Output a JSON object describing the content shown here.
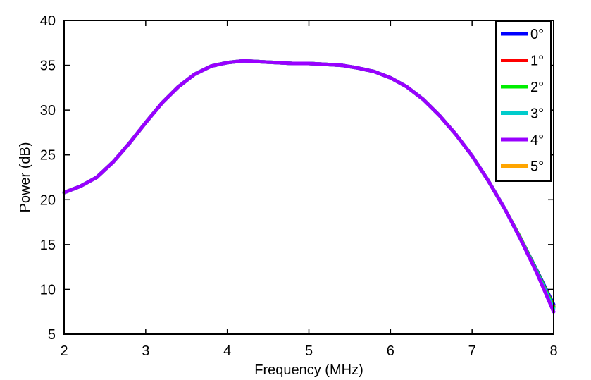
{
  "chart_data": {
    "type": "line",
    "title": "",
    "xlabel": "Frequency (MHz)",
    "ylabel": "Power (dB)",
    "xlim": [
      2,
      8
    ],
    "ylim": [
      5,
      40
    ],
    "xticks": [
      2,
      3,
      4,
      5,
      6,
      7,
      8
    ],
    "yticks": [
      5,
      10,
      15,
      20,
      25,
      30,
      35,
      40
    ],
    "grid": false,
    "legend_position": "top-right",
    "series": [
      {
        "name": "0°",
        "color": "#0000ff",
        "x": [
          2.0,
          2.2,
          2.4,
          2.6,
          2.8,
          3.0,
          3.2,
          3.4,
          3.6,
          3.8,
          4.0,
          4.2,
          4.4,
          4.6,
          4.8,
          5.0,
          5.2,
          5.4,
          5.6,
          5.8,
          6.0,
          6.2,
          6.4,
          6.6,
          6.8,
          7.0,
          7.2,
          7.4,
          7.6,
          7.8,
          8.0
        ],
        "y": [
          20.8,
          21.5,
          22.5,
          24.2,
          26.3,
          28.6,
          30.8,
          32.6,
          34.0,
          34.9,
          35.3,
          35.5,
          35.4,
          35.3,
          35.2,
          35.2,
          35.1,
          35.0,
          34.7,
          34.3,
          33.6,
          32.6,
          31.2,
          29.4,
          27.3,
          24.9,
          22.1,
          19.0,
          15.6,
          12.0,
          8.3
        ]
      },
      {
        "name": "1°",
        "color": "#ff0000",
        "x": [
          2.0,
          2.2,
          2.4,
          2.6,
          2.8,
          3.0,
          3.2,
          3.4,
          3.6,
          3.8,
          4.0,
          4.2,
          4.4,
          4.6,
          4.8,
          5.0,
          5.2,
          5.4,
          5.6,
          5.8,
          6.0,
          6.2,
          6.4,
          6.6,
          6.8,
          7.0,
          7.2,
          7.4,
          7.6,
          7.8,
          8.0
        ],
        "y": [
          20.8,
          21.5,
          22.5,
          24.2,
          26.3,
          28.6,
          30.8,
          32.6,
          34.0,
          34.9,
          35.3,
          35.5,
          35.4,
          35.3,
          35.2,
          35.2,
          35.1,
          35.0,
          34.7,
          34.3,
          33.6,
          32.6,
          31.2,
          29.4,
          27.3,
          24.9,
          22.1,
          19.0,
          15.6,
          11.9,
          8.1
        ]
      },
      {
        "name": "2°",
        "color": "#00ee00",
        "x": [
          2.0,
          2.2,
          2.4,
          2.6,
          2.8,
          3.0,
          3.2,
          3.4,
          3.6,
          3.8,
          4.0,
          4.2,
          4.4,
          4.6,
          4.8,
          5.0,
          5.2,
          5.4,
          5.6,
          5.8,
          6.0,
          6.2,
          6.4,
          6.6,
          6.8,
          7.0,
          7.2,
          7.4,
          7.6,
          7.8,
          8.0
        ],
        "y": [
          20.8,
          21.5,
          22.5,
          24.2,
          26.3,
          28.6,
          30.8,
          32.6,
          34.0,
          34.9,
          35.3,
          35.5,
          35.4,
          35.3,
          35.2,
          35.2,
          35.1,
          35.0,
          34.7,
          34.3,
          33.6,
          32.6,
          31.2,
          29.4,
          27.3,
          24.9,
          22.1,
          19.0,
          15.6,
          11.9,
          8.0
        ]
      },
      {
        "name": "3°",
        "color": "#00cccc",
        "x": [
          2.0,
          2.2,
          2.4,
          2.6,
          2.8,
          3.0,
          3.2,
          3.4,
          3.6,
          3.8,
          4.0,
          4.2,
          4.4,
          4.6,
          4.8,
          5.0,
          5.2,
          5.4,
          5.6,
          5.8,
          6.0,
          6.2,
          6.4,
          6.6,
          6.8,
          7.0,
          7.2,
          7.4,
          7.6,
          7.8,
          8.0
        ],
        "y": [
          20.8,
          21.5,
          22.5,
          24.2,
          26.3,
          28.6,
          30.8,
          32.6,
          34.0,
          34.9,
          35.3,
          35.5,
          35.4,
          35.3,
          35.2,
          35.2,
          35.1,
          35.0,
          34.7,
          34.3,
          33.6,
          32.6,
          31.2,
          29.4,
          27.3,
          24.9,
          22.1,
          19.0,
          15.5,
          11.8,
          7.8
        ]
      },
      {
        "name": "4°",
        "color": "#9900ff",
        "x": [
          2.0,
          2.2,
          2.4,
          2.6,
          2.8,
          3.0,
          3.2,
          3.4,
          3.6,
          3.8,
          4.0,
          4.2,
          4.4,
          4.6,
          4.8,
          5.0,
          5.2,
          5.4,
          5.6,
          5.8,
          6.0,
          6.2,
          6.4,
          6.6,
          6.8,
          7.0,
          7.2,
          7.4,
          7.6,
          7.8,
          8.0
        ],
        "y": [
          20.8,
          21.5,
          22.5,
          24.2,
          26.3,
          28.6,
          30.8,
          32.6,
          34.0,
          34.9,
          35.3,
          35.5,
          35.4,
          35.3,
          35.2,
          35.2,
          35.1,
          35.0,
          34.7,
          34.3,
          33.6,
          32.6,
          31.2,
          29.4,
          27.3,
          24.9,
          22.1,
          19.0,
          15.5,
          11.7,
          7.5
        ]
      },
      {
        "name": "5°",
        "color": "#ffa500",
        "x": [],
        "y": []
      }
    ]
  }
}
